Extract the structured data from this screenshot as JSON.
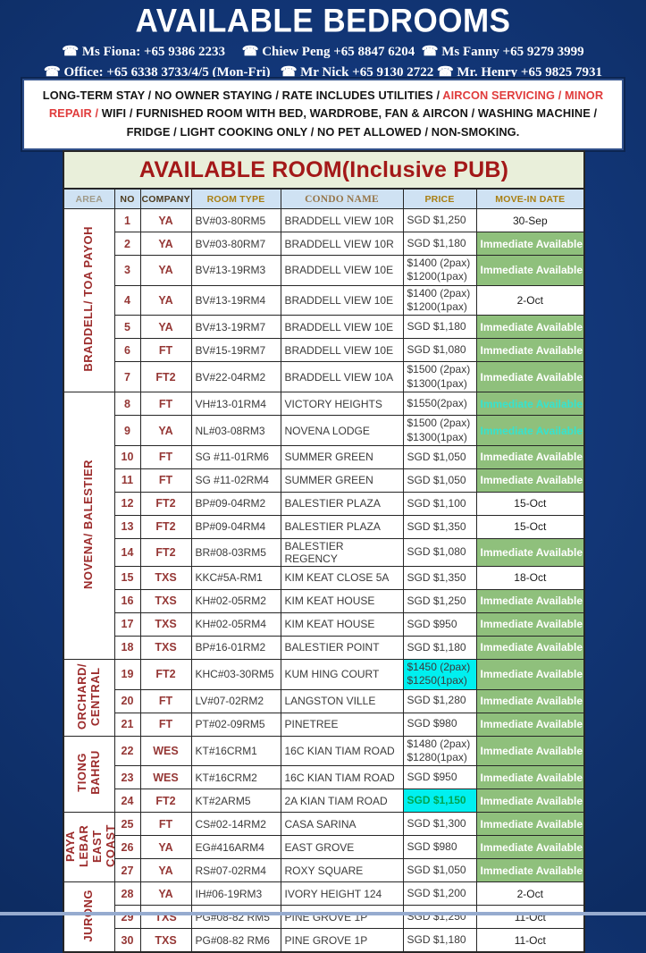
{
  "page": {
    "title": "AVAILABLE BEDROOMS",
    "contact_lines": [
      "☎ Ms Fiona: +65 9386 2233     ☎ Chiew Peng +65 8847 6204  ☎ Ms Fanny +65 9279 3999",
      "☎ Office: +65 6338 3733/4/5 (Mon-Fri)   ☎ Mr Nick +65 9130 2722 ☎ Mr. Henry +65 9825 7931"
    ]
  },
  "notice": {
    "segments": [
      {
        "text": "LONG-TERM STAY / NO OWNER STAYING / RATE INCLUDES UTILITIES / ",
        "color": "#151515"
      },
      {
        "text": "AIRCON SERVICING / MINOR REPAIR /",
        "color": "#e03c3c"
      },
      {
        "text": " WIFI / FURNISHED ROOM WITH BED, WARDROBE, FAN & AIRCON / WASHING MACHINE / FRIDGE / LIGHT COOKING ONLY / NO PET ALLOWED / NON-SMOKING.",
        "color": "#151515"
      }
    ]
  },
  "table": {
    "title": "AVAILABLE ROOM(Inclusive PUB)",
    "columns": [
      "AREA",
      "NO",
      "COMPANY",
      "ROOM TYPE",
      "CONDO NAME",
      "PRICE",
      "MOVE-IN DATE"
    ],
    "areas": [
      {
        "label": "BRADDELL/ TOA PAYOH",
        "rows": 7
      },
      {
        "label": "NOVENA/ BALESTIER",
        "rows": 11
      },
      {
        "label": "ORCHARD/\nCENTRAL",
        "rows": 3
      },
      {
        "label": "TIONG BAHRU",
        "rows": 3
      },
      {
        "label": "PAYA LEBAR\nEAST COAST",
        "rows": 3
      },
      {
        "label": "JURONG",
        "rows": 3
      }
    ],
    "rows": [
      {
        "no": "1",
        "company": "YA",
        "room_type": "BV#03-80RM5",
        "condo": "BRADDELL VIEW 10R",
        "price": [
          "SGD $1,250"
        ],
        "price_style": "",
        "move_in": "30-Sep",
        "move_style": "date"
      },
      {
        "no": "2",
        "company": "YA",
        "room_type": "BV#03-80RM7",
        "condo": "BRADDELL VIEW 10R",
        "price": [
          "SGD $1,180"
        ],
        "price_style": "",
        "move_in": "Immediate Available",
        "move_style": "green"
      },
      {
        "no": "3",
        "company": "YA",
        "room_type": "BV#13-19RM3",
        "condo": "BRADDELL VIEW 10E",
        "price": [
          "$1400 (2pax)",
          "$1200(1pax)"
        ],
        "price_style": "",
        "move_in": "Immediate Available",
        "move_style": "green"
      },
      {
        "no": "4",
        "company": "YA",
        "room_type": "BV#13-19RM4",
        "condo": "BRADDELL VIEW 10E",
        "price": [
          "$1400 (2pax)",
          "$1200(1pax)"
        ],
        "price_style": "",
        "move_in": "2-Oct",
        "move_style": "date"
      },
      {
        "no": "5",
        "company": "YA",
        "room_type": "BV#13-19RM7",
        "condo": "BRADDELL VIEW 10E",
        "price": [
          "SGD $1,180"
        ],
        "price_style": "",
        "move_in": "Immediate Available",
        "move_style": "green"
      },
      {
        "no": "6",
        "company": "FT",
        "room_type": "BV#15-19RM7",
        "condo": "BRADDELL VIEW 10E",
        "price": [
          "SGD $1,080"
        ],
        "price_style": "",
        "move_in": "Immediate Available",
        "move_style": "green"
      },
      {
        "no": "7",
        "company": "FT2",
        "room_type": "BV#22-04RM2",
        "condo": "BRADDELL VIEW 10A",
        "price": [
          "$1500 (2pax)",
          "$1300(1pax)"
        ],
        "price_style": "",
        "move_in": "Immediate Available",
        "move_style": "green"
      },
      {
        "no": "8",
        "company": "FT",
        "room_type": "VH#13-01RM4",
        "condo": "VICTORY HEIGHTS",
        "price": [
          "$1550(2pax)"
        ],
        "price_style": "",
        "move_in": "Immediate Available",
        "move_style": "green_cyan"
      },
      {
        "no": "9",
        "company": "YA",
        "room_type": "NL#03-08RM3",
        "condo": "NOVENA LODGE",
        "price": [
          "$1500 (2pax)",
          "$1300(1pax)"
        ],
        "price_style": "",
        "move_in": "Immediate Available",
        "move_style": "green_cyan"
      },
      {
        "no": "10",
        "company": "FT",
        "room_type": "SG #11-01RM6",
        "condo": "SUMMER GREEN",
        "price": [
          "SGD $1,050"
        ],
        "price_style": "",
        "move_in": "Immediate Available",
        "move_style": "green"
      },
      {
        "no": "11",
        "company": "FT",
        "room_type": "SG #11-02RM4",
        "condo": "SUMMER GREEN",
        "price": [
          "SGD $1,050"
        ],
        "price_style": "",
        "move_in": "Immediate Available",
        "move_style": "green"
      },
      {
        "no": "12",
        "company": "FT2",
        "room_type": "BP#09-04RM2",
        "condo": "BALESTIER PLAZA",
        "price": [
          "SGD $1,100"
        ],
        "price_style": "",
        "move_in": "15-Oct",
        "move_style": "date"
      },
      {
        "no": "13",
        "company": "FT2",
        "room_type": "BP#09-04RM4",
        "condo": "BALESTIER PLAZA",
        "price": [
          "SGD $1,350"
        ],
        "price_style": "",
        "move_in": "15-Oct",
        "move_style": "date"
      },
      {
        "no": "14",
        "company": "FT2",
        "room_type": "BR#08-03RM5",
        "condo": "BALESTIER REGENCY",
        "price": [
          "SGD $1,080"
        ],
        "price_style": "",
        "move_in": "Immediate Available",
        "move_style": "green"
      },
      {
        "no": "15",
        "company": "TXS",
        "room_type": "KKC#5A-RM1",
        "condo": "KIM KEAT CLOSE 5A",
        "price": [
          "SGD $1,350"
        ],
        "price_style": "",
        "move_in": "18-Oct",
        "move_style": "date"
      },
      {
        "no": "16",
        "company": "TXS",
        "room_type": "KH#02-05RM2",
        "condo": "KIM KEAT HOUSE",
        "price": [
          "SGD $1,250"
        ],
        "price_style": "",
        "move_in": "Immediate Available",
        "move_style": "green"
      },
      {
        "no": "17",
        "company": "TXS",
        "room_type": "KH#02-05RM4",
        "condo": "KIM KEAT HOUSE",
        "price": [
          "SGD $950"
        ],
        "price_style": "",
        "move_in": "Immediate Available",
        "move_style": "green"
      },
      {
        "no": "18",
        "company": "TXS",
        "room_type": "BP#16-01RM2",
        "condo": "BALESTIER POINT",
        "price": [
          "SGD $1,180"
        ],
        "price_style": "",
        "move_in": "Immediate Available",
        "move_style": "green"
      },
      {
        "no": "19",
        "company": "FT2",
        "room_type": "KHC#03-30RM5",
        "condo": "KUM HING COURT",
        "price": [
          "$1450 (2pax)",
          "$1250(1pax)"
        ],
        "price_style": "cyan",
        "move_in": "Immediate Available",
        "move_style": "green"
      },
      {
        "no": "20",
        "company": "FT",
        "room_type": "LV#07-02RM2",
        "condo": "LANGSTON VILLE",
        "price": [
          "SGD $1,280"
        ],
        "price_style": "",
        "move_in": "Immediate Available",
        "move_style": "green"
      },
      {
        "no": "21",
        "company": "FT",
        "room_type": "PT#02-09RM5",
        "condo": "PINETREE",
        "price": [
          "SGD $980"
        ],
        "price_style": "",
        "move_in": "Immediate Available",
        "move_style": "green"
      },
      {
        "no": "22",
        "company": "WES",
        "room_type": "KT#16CRM1",
        "condo": "16C KIAN TIAM ROAD",
        "price": [
          "$1480 (2pax)",
          "$1280(1pax)"
        ],
        "price_style": "",
        "move_in": "Immediate Available",
        "move_style": "green"
      },
      {
        "no": "23",
        "company": "WES",
        "room_type": "KT#16CRM2",
        "condo": "16C KIAN TIAM ROAD",
        "price": [
          "SGD $950"
        ],
        "price_style": "",
        "move_in": "Immediate Available",
        "move_style": "green"
      },
      {
        "no": "24",
        "company": "FT2",
        "room_type": "KT#2ARM5",
        "condo": "2A KIAN TIAM ROAD",
        "price": [
          "SGD $1,150"
        ],
        "price_style": "cyan_green",
        "move_in": "Immediate Available",
        "move_style": "green"
      },
      {
        "no": "25",
        "company": "FT",
        "room_type": "CS#02-14RM2",
        "condo": "CASA SARINA",
        "price": [
          "SGD $1,300"
        ],
        "price_style": "",
        "move_in": "Immediate Available",
        "move_style": "green"
      },
      {
        "no": "26",
        "company": "YA",
        "room_type": "EG#416ARM4",
        "condo": "EAST GROVE",
        "price": [
          "SGD $980"
        ],
        "price_style": "",
        "move_in": "Immediate Available",
        "move_style": "green"
      },
      {
        "no": "27",
        "company": "YA",
        "room_type": "RS#07-02RM4",
        "condo": "ROXY SQUARE",
        "price": [
          "SGD $1,050"
        ],
        "price_style": "",
        "move_in": "Immediate Available",
        "move_style": "green"
      },
      {
        "no": "28",
        "company": "YA",
        "room_type": "IH#06-19RM3",
        "condo": "IVORY HEIGHT 124",
        "price": [
          "SGD $1,200"
        ],
        "price_style": "",
        "move_in": "2-Oct",
        "move_style": "date"
      },
      {
        "no": "29",
        "company": "TXS",
        "room_type": "PG#08-82 RM5",
        "condo": "PINE GROVE 1P",
        "price": [
          "SGD $1,250"
        ],
        "price_style": "",
        "move_in": "11-Oct",
        "move_style": "date"
      },
      {
        "no": "30",
        "company": "TXS",
        "room_type": "PG#08-82 RM6",
        "condo": "PINE GROVE 1P",
        "price": [
          "SGD $1,180"
        ],
        "price_style": "",
        "move_in": "11-Oct",
        "move_style": "date"
      }
    ]
  },
  "colors": {
    "background_navy": "#113473",
    "title_red": "#a31818",
    "area_text_red": "#9c2b2b",
    "company_red": "#953735",
    "immediate_green_bg": "#8fc07c",
    "highlight_cyan_bg": "#00f0f0",
    "turquoise_text": "#35e3cf",
    "price_green_text": "#00a651",
    "header_row_blue": "#cfe2f3",
    "title_band_green": "#e9efda",
    "notice_red": "#e03c3c"
  }
}
